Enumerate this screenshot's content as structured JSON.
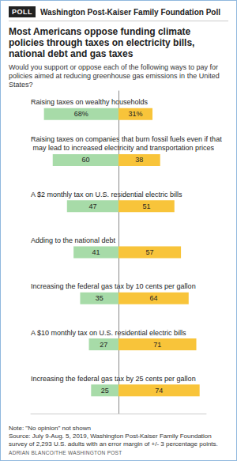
{
  "header": {
    "badge": "POLL",
    "text": "Washington Post-Kaiser Family Foundation Poll"
  },
  "chart_data": {
    "type": "bar",
    "orientation": "horizontal",
    "title": "Most Americans oppose funding climate policies through taxes on electricity bills, national debt and gas taxes",
    "subtitle": "Would you support or oppose each of the following ways to pay for policies aimed at reducing greenhouse gas emissions in the United States?",
    "categories": [
      "Raising taxes on wealthy households",
      "Raising taxes on companies that burn fossil fuels even if that may lead to increased electricity and transportation prices",
      "A $2 monthly tax on U.S. residential electric bills",
      "Adding to the national debt",
      "Increasing the federal gas tax by 10 cents per gallon",
      "A $10 monthly tax on U.S. residential electric bills",
      "Increasing the federal gas tax by 25 cents per gallon"
    ],
    "series": [
      {
        "color": "#a7dba8",
        "values": [
          68,
          60,
          47,
          41,
          35,
          27,
          25
        ],
        "value_labels": [
          "68%",
          "60",
          "47",
          "41",
          "35",
          "27",
          "25"
        ]
      },
      {
        "color": "#f8c43a",
        "values": [
          31,
          38,
          51,
          57,
          64,
          71,
          74
        ],
        "value_labels": [
          "31%",
          "38",
          "51",
          "57",
          "64",
          "71",
          "74"
        ]
      }
    ],
    "xlim": [
      0,
      80
    ],
    "data_labels": true,
    "tick_labels": false,
    "grid": false,
    "note": "Note: \"No opinion\" not shown",
    "source": "Source: July 9-Aug. 5, 2019, Washington Post-Kaiser Family Foundation survey of 2,293 U.S. adults with an error margin of +/- 3 percentage points.",
    "credit": "ADRIAN BLANCO/THE WASHINGTON POST"
  }
}
